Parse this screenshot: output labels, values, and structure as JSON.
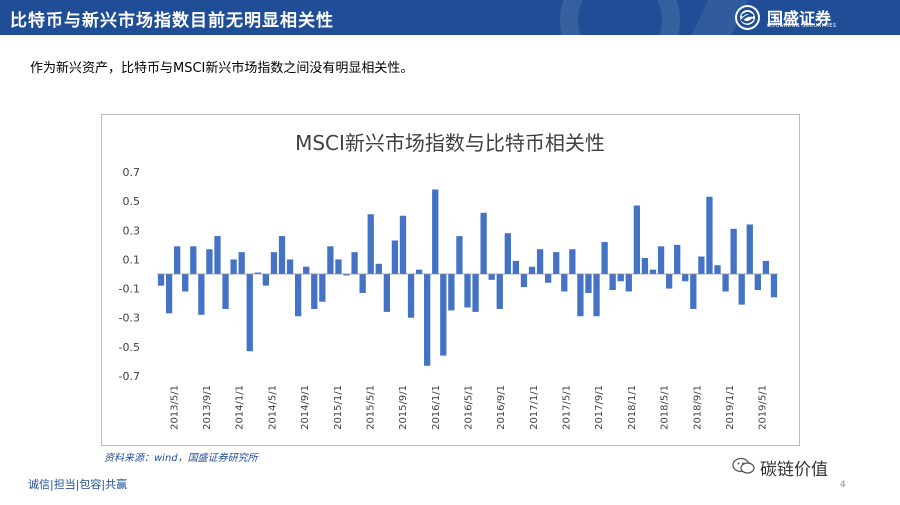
{
  "header": {
    "title": "比特币与新兴市场指数目前无明显相关性",
    "logo_text": "国盛证券",
    "logo_subtext": "GUOSHENG SECURITIES"
  },
  "intro_text": "作为新兴资产，比特币与MSCI新兴市场指数之间没有明显相关性。",
  "source_text": "资料来源：wind，国盛证券研究所",
  "footer_text": "诚信|担当|包容|共赢",
  "page_number": "4",
  "watermark_text": "碳链价值",
  "colors": {
    "header_bg": "#1f4e96",
    "bar": "#4472c4",
    "text_blue": "#1f4e96"
  },
  "chart_data": {
    "type": "bar",
    "title": "MSCI新兴市场指数与比特币相关性",
    "xlabel": "",
    "ylabel": "",
    "ylim": [
      -0.7,
      0.7
    ],
    "yticks": [
      0.7,
      0.5,
      0.3,
      0.1,
      -0.1,
      -0.3,
      -0.5,
      -0.7
    ],
    "grid": false,
    "legend": "none",
    "x_tick_labels": [
      "2013/5/1",
      "2013/9/1",
      "2014/1/1",
      "2014/5/1",
      "2014/9/1",
      "2015/1/1",
      "2015/5/1",
      "2015/9/1",
      "2016/1/1",
      "2016/5/1",
      "2016/9/1",
      "2017/1/1",
      "2017/5/1",
      "2017/9/1",
      "2018/1/1",
      "2018/5/1",
      "2018/9/1",
      "2019/1/1",
      "2019/5/1"
    ],
    "values": [
      -0.08,
      -0.27,
      0.19,
      -0.12,
      0.19,
      -0.28,
      0.17,
      0.26,
      -0.24,
      0.1,
      0.15,
      -0.53,
      0.01,
      -0.08,
      0.15,
      0.26,
      0.1,
      -0.29,
      0.05,
      -0.24,
      -0.19,
      0.19,
      0.1,
      -0.01,
      0.15,
      -0.13,
      0.41,
      0.07,
      -0.26,
      0.23,
      0.4,
      -0.3,
      0.03,
      -0.63,
      0.58,
      -0.56,
      -0.25,
      0.26,
      -0.23,
      -0.26,
      0.42,
      -0.04,
      -0.24,
      0.28,
      0.09,
      -0.09,
      0.05,
      0.17,
      -0.06,
      0.15,
      -0.12,
      0.17,
      -0.29,
      -0.13,
      -0.29,
      0.22,
      -0.11,
      -0.05,
      -0.12,
      0.47,
      0.11,
      0.03,
      0.19,
      -0.1,
      0.2,
      -0.05,
      -0.24,
      0.12,
      0.53,
      0.06,
      -0.12,
      0.31,
      -0.21,
      0.34,
      -0.11,
      0.09,
      -0.16
    ]
  }
}
